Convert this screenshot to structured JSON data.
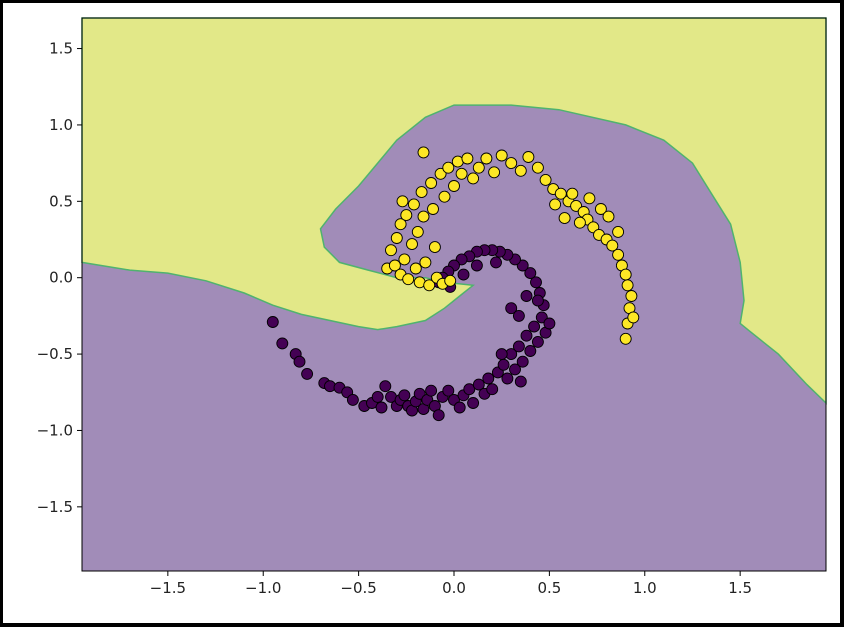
{
  "chart_data": {
    "type": "scatter",
    "title": "",
    "xlabel": "",
    "ylabel": "",
    "xlim": [
      -1.95,
      1.95
    ],
    "ylim": [
      -1.92,
      1.7
    ],
    "x_ticks": [
      -1.5,
      -1.0,
      -0.5,
      0.0,
      0.5,
      1.0,
      1.5
    ],
    "x_tick_labels": [
      "−1.5",
      "−1.0",
      "−0.5",
      "0.0",
      "0.5",
      "1.0",
      "1.5"
    ],
    "y_ticks": [
      1.5,
      1.0,
      0.5,
      0.0,
      -0.5,
      -1.0,
      -1.5
    ],
    "y_tick_labels": [
      "1.5",
      "1.0",
      "0.5",
      "0.0",
      "−0.5",
      "−1.0",
      "−1.5"
    ],
    "grid": false,
    "legend": "none",
    "colors": {
      "class0_region": "#a18cb8",
      "class1_region": "#e2e888",
      "boundary": "#4fb36e",
      "class0_point": "#440154",
      "class1_point": "#fde725"
    },
    "decision_regions": {
      "class1_region_left": [
        [
          -1.95,
          0.1
        ],
        [
          -1.85,
          0.08
        ],
        [
          -1.7,
          0.05
        ],
        [
          -1.5,
          0.03
        ],
        [
          -1.3,
          -0.02
        ],
        [
          -1.1,
          -0.1
        ],
        [
          -0.95,
          -0.18
        ],
        [
          -0.8,
          -0.24
        ],
        [
          -0.65,
          -0.28
        ],
        [
          -0.5,
          -0.32
        ],
        [
          -0.4,
          -0.34
        ],
        [
          -0.3,
          -0.32
        ],
        [
          -0.15,
          -0.28
        ],
        [
          -0.05,
          -0.2
        ],
        [
          0.03,
          -0.12
        ],
        [
          0.1,
          -0.05
        ],
        [
          -0.05,
          -0.03
        ],
        [
          -0.15,
          0.0
        ],
        [
          -0.3,
          0.0
        ],
        [
          -0.45,
          0.05
        ],
        [
          -0.6,
          0.1
        ],
        [
          -0.68,
          0.2
        ],
        [
          -0.7,
          0.32
        ],
        [
          -0.62,
          0.45
        ],
        [
          -0.5,
          0.6
        ],
        [
          -0.4,
          0.75
        ],
        [
          -0.3,
          0.9
        ],
        [
          -0.15,
          1.05
        ],
        [
          0.0,
          1.13
        ],
        [
          0.3,
          1.13
        ],
        [
          0.55,
          1.1
        ],
        [
          0.9,
          1.0
        ],
        [
          1.1,
          0.9
        ],
        [
          1.25,
          0.75
        ],
        [
          1.35,
          0.55
        ],
        [
          1.45,
          0.35
        ],
        [
          1.5,
          0.1
        ],
        [
          1.52,
          -0.15
        ],
        [
          1.5,
          -0.3
        ],
        [
          1.55,
          -0.35
        ],
        [
          1.7,
          -0.5
        ],
        [
          1.85,
          -0.7
        ],
        [
          1.95,
          -0.82
        ],
        [
          1.95,
          1.7
        ],
        [
          -1.95,
          1.7
        ]
      ]
    },
    "series": [
      {
        "class": 0,
        "points": [
          [
            -0.95,
            -0.29
          ],
          [
            -0.9,
            -0.43
          ],
          [
            -0.83,
            -0.5
          ],
          [
            -0.81,
            -0.55
          ],
          [
            -0.77,
            -0.63
          ],
          [
            -0.68,
            -0.69
          ],
          [
            -0.65,
            -0.71
          ],
          [
            -0.6,
            -0.72
          ],
          [
            -0.56,
            -0.75
          ],
          [
            -0.53,
            -0.8
          ],
          [
            -0.47,
            -0.84
          ],
          [
            -0.43,
            -0.82
          ],
          [
            -0.4,
            -0.78
          ],
          [
            -0.38,
            -0.85
          ],
          [
            -0.36,
            -0.71
          ],
          [
            -0.33,
            -0.78
          ],
          [
            -0.3,
            -0.84
          ],
          [
            -0.28,
            -0.8
          ],
          [
            -0.26,
            -0.77
          ],
          [
            -0.24,
            -0.84
          ],
          [
            -0.22,
            -0.87
          ],
          [
            -0.2,
            -0.81
          ],
          [
            -0.18,
            -0.76
          ],
          [
            -0.16,
            -0.86
          ],
          [
            -0.14,
            -0.8
          ],
          [
            -0.12,
            -0.74
          ],
          [
            -0.1,
            -0.84
          ],
          [
            -0.08,
            -0.9
          ],
          [
            -0.06,
            -0.78
          ],
          [
            -0.03,
            -0.74
          ],
          [
            0.0,
            -0.8
          ],
          [
            0.03,
            -0.85
          ],
          [
            0.05,
            -0.77
          ],
          [
            0.08,
            -0.73
          ],
          [
            0.1,
            -0.82
          ],
          [
            0.13,
            -0.7
          ],
          [
            0.16,
            -0.76
          ],
          [
            0.18,
            -0.66
          ],
          [
            0.2,
            -0.73
          ],
          [
            0.23,
            -0.62
          ],
          [
            0.26,
            -0.57
          ],
          [
            0.28,
            -0.66
          ],
          [
            0.3,
            -0.5
          ],
          [
            0.32,
            -0.6
          ],
          [
            0.34,
            -0.45
          ],
          [
            0.36,
            -0.55
          ],
          [
            0.38,
            -0.38
          ],
          [
            0.4,
            -0.48
          ],
          [
            0.42,
            -0.32
          ],
          [
            0.44,
            -0.42
          ],
          [
            0.46,
            -0.26
          ],
          [
            0.48,
            -0.36
          ],
          [
            0.47,
            -0.18
          ],
          [
            0.45,
            -0.1
          ],
          [
            0.43,
            -0.03
          ],
          [
            0.4,
            0.03
          ],
          [
            0.36,
            0.08
          ],
          [
            0.32,
            0.12
          ],
          [
            0.28,
            0.15
          ],
          [
            0.24,
            0.17
          ],
          [
            0.2,
            0.18
          ],
          [
            0.16,
            0.18
          ],
          [
            0.12,
            0.17
          ],
          [
            0.08,
            0.14
          ],
          [
            0.04,
            0.12
          ],
          [
            0.0,
            0.08
          ],
          [
            -0.03,
            0.04
          ],
          [
            -0.06,
            0.0
          ],
          [
            -0.08,
            -0.03
          ],
          [
            -0.02,
            -0.06
          ],
          [
            0.3,
            -0.2
          ],
          [
            0.34,
            -0.25
          ],
          [
            0.38,
            -0.12
          ],
          [
            0.35,
            -0.68
          ],
          [
            0.25,
            -0.5
          ],
          [
            0.22,
            0.1
          ],
          [
            0.12,
            0.08
          ],
          [
            0.05,
            0.02
          ],
          [
            0.44,
            -0.15
          ],
          [
            0.5,
            -0.3
          ]
        ]
      },
      {
        "class": 1,
        "points": [
          [
            -0.35,
            0.06
          ],
          [
            -0.33,
            0.18
          ],
          [
            -0.31,
            0.08
          ],
          [
            -0.3,
            0.26
          ],
          [
            -0.28,
            0.02
          ],
          [
            -0.28,
            0.35
          ],
          [
            -0.26,
            0.12
          ],
          [
            -0.25,
            0.41
          ],
          [
            -0.24,
            -0.01
          ],
          [
            -0.22,
            0.22
          ],
          [
            -0.21,
            0.48
          ],
          [
            -0.2,
            0.06
          ],
          [
            -0.19,
            0.3
          ],
          [
            -0.18,
            -0.03
          ],
          [
            -0.17,
            0.56
          ],
          [
            -0.16,
            0.4
          ],
          [
            -0.15,
            0.1
          ],
          [
            -0.13,
            -0.05
          ],
          [
            -0.12,
            0.62
          ],
          [
            -0.11,
            0.45
          ],
          [
            -0.1,
            0.2
          ],
          [
            -0.09,
            0.0
          ],
          [
            -0.07,
            0.68
          ],
          [
            -0.06,
            -0.04
          ],
          [
            -0.05,
            0.53
          ],
          [
            -0.03,
            0.72
          ],
          [
            -0.02,
            -0.02
          ],
          [
            0.0,
            0.6
          ],
          [
            0.02,
            0.76
          ],
          [
            0.04,
            0.68
          ],
          [
            0.07,
            0.78
          ],
          [
            0.1,
            0.65
          ],
          [
            0.13,
            0.72
          ],
          [
            0.17,
            0.78
          ],
          [
            0.21,
            0.69
          ],
          [
            0.25,
            0.8
          ],
          [
            0.3,
            0.75
          ],
          [
            0.35,
            0.7
          ],
          [
            0.39,
            0.79
          ],
          [
            0.44,
            0.72
          ],
          [
            0.48,
            0.64
          ],
          [
            0.52,
            0.58
          ],
          [
            0.56,
            0.55
          ],
          [
            0.6,
            0.5
          ],
          [
            0.64,
            0.47
          ],
          [
            0.68,
            0.43
          ],
          [
            0.7,
            0.38
          ],
          [
            0.73,
            0.33
          ],
          [
            0.76,
            0.28
          ],
          [
            0.8,
            0.25
          ],
          [
            0.83,
            0.21
          ],
          [
            0.86,
            0.15
          ],
          [
            0.88,
            0.08
          ],
          [
            0.9,
            0.02
          ],
          [
            0.91,
            -0.05
          ],
          [
            0.93,
            -0.12
          ],
          [
            0.92,
            -0.2
          ],
          [
            0.91,
            -0.3
          ],
          [
            0.9,
            -0.4
          ],
          [
            0.94,
            -0.26
          ],
          [
            0.62,
            0.55
          ],
          [
            0.66,
            0.36
          ],
          [
            0.71,
            0.52
          ],
          [
            0.77,
            0.45
          ],
          [
            0.81,
            0.4
          ],
          [
            0.86,
            0.3
          ],
          [
            0.53,
            0.48
          ],
          [
            0.58,
            0.39
          ],
          [
            -0.16,
            0.82
          ],
          [
            -0.27,
            0.5
          ]
        ]
      }
    ]
  }
}
